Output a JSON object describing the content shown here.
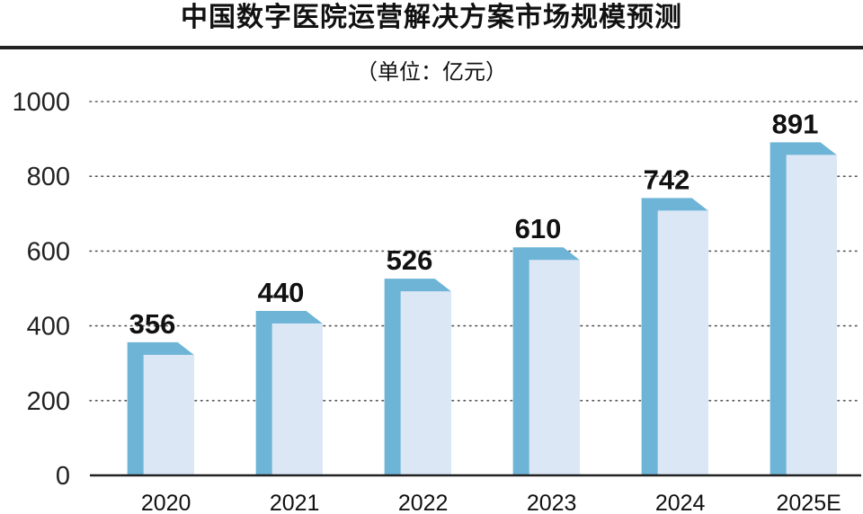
{
  "chart_data": {
    "type": "bar",
    "title": "中国数字医院运营解决方案市场规模预测",
    "unit": "（单位：亿元）",
    "categories": [
      "2020",
      "2021",
      "2022",
      "2023",
      "2024",
      "2025E"
    ],
    "values": [
      356,
      440,
      526,
      610,
      742,
      891
    ],
    "data_labels": [
      "356",
      "440",
      "526",
      "610",
      "742",
      "891"
    ],
    "ylim": [
      0,
      1000
    ],
    "yticks": [
      0,
      200,
      400,
      600,
      800,
      1000
    ],
    "ytick_labels": [
      "0",
      "200",
      "400",
      "600",
      "800",
      "1000"
    ],
    "grid": true,
    "colors": {
      "bar_face": "#dce7f6",
      "bar_side": "#6db4d6",
      "grid": "#555555",
      "axis": "#222222"
    }
  }
}
